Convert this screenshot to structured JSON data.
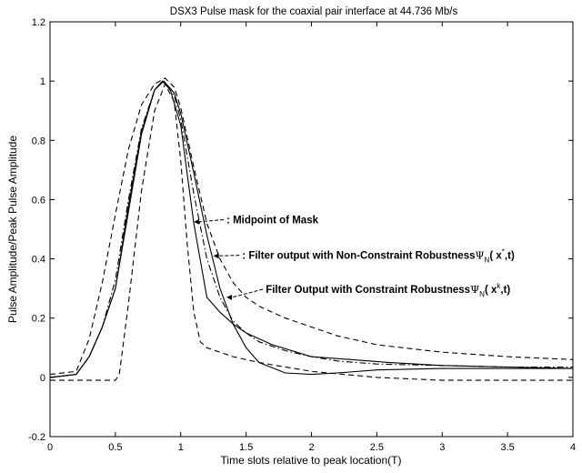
{
  "chart_data": {
    "type": "line",
    "title": "DSX3 Pulse mask for the coaxial pair interface at 44.736 Mb/s",
    "xlabel": "Time slots relative to peak location(T)",
    "ylabel": "Pulse Amplitude/Peak Pulse Amplitude",
    "xlim": [
      0,
      4
    ],
    "ylim": [
      -0.2,
      1.2
    ],
    "xticks": [
      0,
      0.5,
      1,
      1.5,
      2,
      2.5,
      3,
      3.5,
      4
    ],
    "xtick_labels": [
      "0",
      "0.5",
      "1",
      "1.5",
      "2",
      "2.5",
      "3",
      "3.5",
      "4"
    ],
    "yticks": [
      -0.2,
      0,
      0.2,
      0.4,
      0.6,
      0.8,
      1,
      1.2
    ],
    "ytick_labels": [
      "-0.2",
      "0",
      "0.2",
      "0.4",
      "0.6",
      "0.8",
      "1",
      "1.2"
    ],
    "grid": false,
    "series": [
      {
        "name": "",
        "style": "dashed",
        "x": [
          0,
          0.2,
          0.3,
          0.4,
          0.5,
          0.6,
          0.7,
          0.8,
          0.88,
          0.95,
          1.0,
          1.1,
          1.2,
          1.3,
          1.4,
          1.5,
          1.6,
          1.8,
          2.0,
          2.2,
          2.5,
          3.0,
          3.5,
          4.0
        ],
        "y": [
          0.01,
          0.02,
          0.13,
          0.32,
          0.55,
          0.77,
          0.92,
          0.99,
          1.01,
          0.98,
          0.91,
          0.71,
          0.52,
          0.4,
          0.32,
          0.27,
          0.24,
          0.2,
          0.17,
          0.14,
          0.11,
          0.085,
          0.07,
          0.06
        ]
      },
      {
        "name": "",
        "style": "dashed",
        "x": [
          0,
          0.5,
          0.53,
          0.6,
          0.7,
          0.8,
          0.88,
          0.95,
          1.0,
          1.05,
          1.1,
          1.15,
          1.2,
          1.4,
          1.6,
          2.0,
          2.5,
          3.0,
          3.5,
          4.0
        ],
        "y": [
          -0.01,
          -0.01,
          0.01,
          0.25,
          0.63,
          0.9,
          0.99,
          0.93,
          0.73,
          0.45,
          0.22,
          0.12,
          0.1,
          0.07,
          0.05,
          0.02,
          0.0,
          -0.01,
          -0.01,
          -0.01
        ]
      },
      {
        "name": "",
        "style": "dashdot",
        "x": [
          0,
          0.2,
          0.3,
          0.4,
          0.5,
          0.6,
          0.7,
          0.8,
          0.87,
          0.95,
          1.0,
          1.1,
          1.2,
          1.3,
          1.4,
          1.5,
          1.6,
          1.8,
          2.0,
          2.2,
          2.5,
          3.0,
          3.5,
          4.0
        ],
        "y": [
          0.0,
          0.01,
          0.07,
          0.17,
          0.33,
          0.6,
          0.84,
          0.97,
          1.0,
          0.95,
          0.87,
          0.62,
          0.4,
          0.27,
          0.19,
          0.15,
          0.12,
          0.09,
          0.07,
          0.055,
          0.045,
          0.04,
          0.035,
          0.035
        ]
      },
      {
        "name": "",
        "style": "solid",
        "x": [
          0,
          0.2,
          0.3,
          0.4,
          0.5,
          0.6,
          0.7,
          0.8,
          0.86,
          0.92,
          1.0,
          1.1,
          1.2,
          1.3,
          1.4,
          1.5,
          1.7,
          2.0,
          2.3,
          2.6,
          3.0,
          3.5,
          4.0
        ],
        "y": [
          0.0,
          0.01,
          0.07,
          0.17,
          0.3,
          0.56,
          0.82,
          0.97,
          1.0,
          0.97,
          0.85,
          0.52,
          0.27,
          0.22,
          0.18,
          0.15,
          0.11,
          0.07,
          0.06,
          0.05,
          0.04,
          0.035,
          0.03
        ]
      },
      {
        "name": "",
        "style": "solid",
        "x": [
          0,
          0.2,
          0.3,
          0.4,
          0.5,
          0.6,
          0.7,
          0.8,
          0.87,
          0.95,
          1.0,
          1.1,
          1.2,
          1.3,
          1.4,
          1.5,
          1.6,
          1.8,
          2.0,
          2.2,
          2.5,
          3.0,
          3.5,
          4.0
        ],
        "y": [
          0.0,
          0.01,
          0.07,
          0.17,
          0.3,
          0.58,
          0.83,
          0.97,
          1.0,
          0.96,
          0.89,
          0.69,
          0.48,
          0.3,
          0.18,
          0.1,
          0.05,
          0.015,
          0.01,
          0.015,
          0.025,
          0.03,
          0.03,
          0.03
        ]
      }
    ],
    "annotations": [
      {
        "text": ": Midpoint of Mask",
        "x": 1.35,
        "y": 0.52,
        "arrow_to": [
          1.1,
          0.525
        ]
      },
      {
        "text": ": Filter output with Non-Constraint Robustness",
        "symbol": "Ψ",
        "sub": "N",
        "args_pre": "( x",
        "sup": "*",
        "args_post": ",t)",
        "x": 1.47,
        "y": 0.4,
        "arrow_to": [
          1.25,
          0.41
        ]
      },
      {
        "text": "Filter Output with Constraint Robustness",
        "symbol": "Ψ",
        "sub": "N",
        "args_pre": "( x",
        "sup": "k",
        "args_post": ",t)",
        "x": 1.65,
        "y": 0.285,
        "arrow_to": [
          1.35,
          0.27
        ]
      }
    ]
  }
}
